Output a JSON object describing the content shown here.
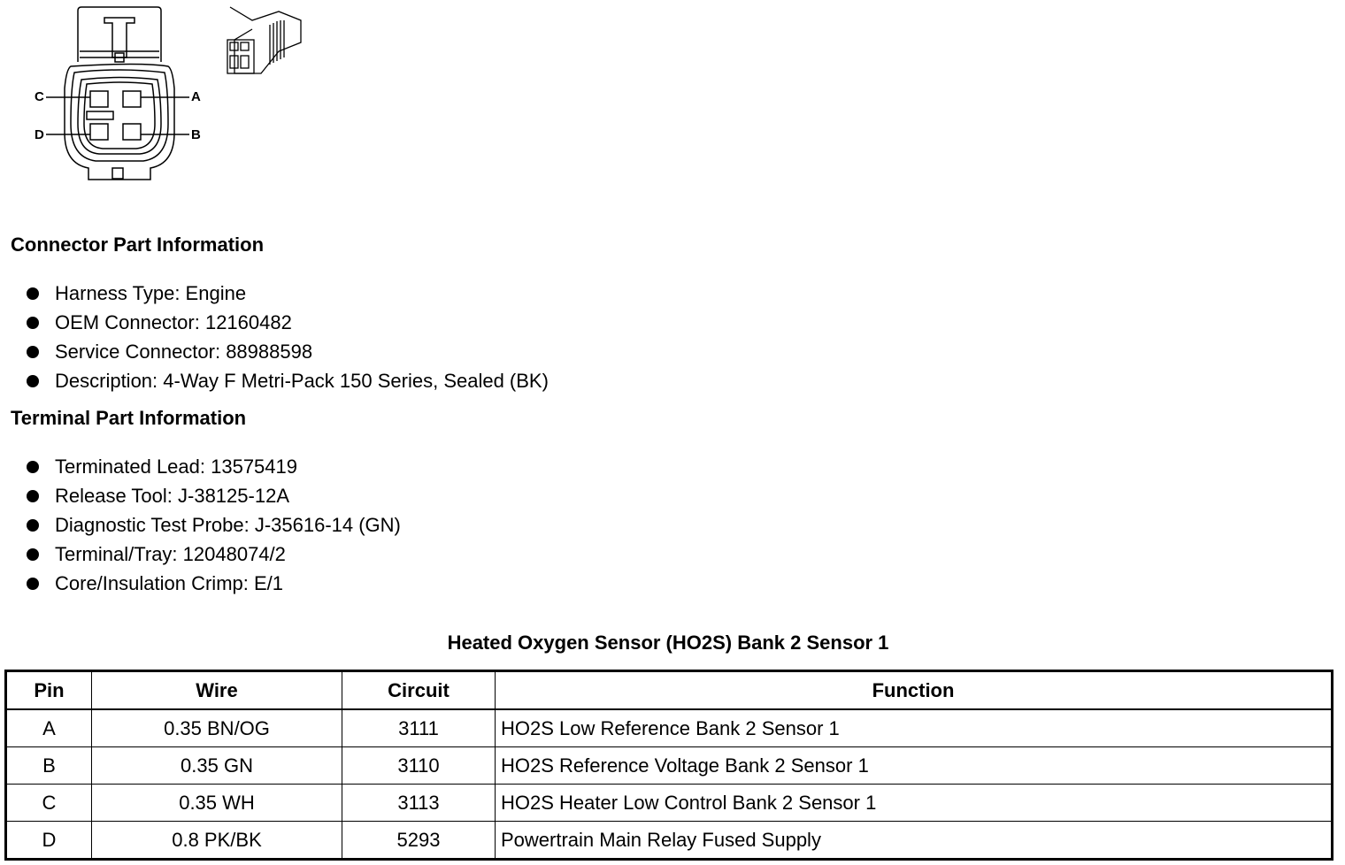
{
  "diagram": {
    "pin_labels": [
      "A",
      "B",
      "C",
      "D"
    ]
  },
  "connector_part": {
    "heading": "Connector Part Information",
    "items": [
      "Harness Type: Engine",
      "OEM Connector: 12160482",
      "Service Connector: 88988598",
      "Description: 4-Way F Metri-Pack 150 Series, Sealed (BK)"
    ]
  },
  "terminal_part": {
    "heading": "Terminal Part Information",
    "items": [
      "Terminated Lead: 13575419",
      "Release Tool: J-38125-12A",
      "Diagnostic Test Probe: J-35616-14 (GN)",
      "Terminal/Tray: 12048074/2",
      "Core/Insulation Crimp: E/1"
    ]
  },
  "table": {
    "title": "Heated Oxygen Sensor (HO2S) Bank 2 Sensor 1",
    "headers": [
      "Pin",
      "Wire",
      "Circuit",
      "Function"
    ],
    "rows": [
      [
        "A",
        "0.35 BN/OG",
        "3111",
        "HO2S Low Reference Bank 2 Sensor 1"
      ],
      [
        "B",
        "0.35 GN",
        "3110",
        "HO2S Reference Voltage Bank 2 Sensor 1"
      ],
      [
        "C",
        "0.35 WH",
        "3113",
        "HO2S Heater Low Control Bank 2 Sensor 1"
      ],
      [
        "D",
        "0.8 PK/BK",
        "5293",
        "Powertrain Main Relay Fused Supply"
      ]
    ]
  }
}
